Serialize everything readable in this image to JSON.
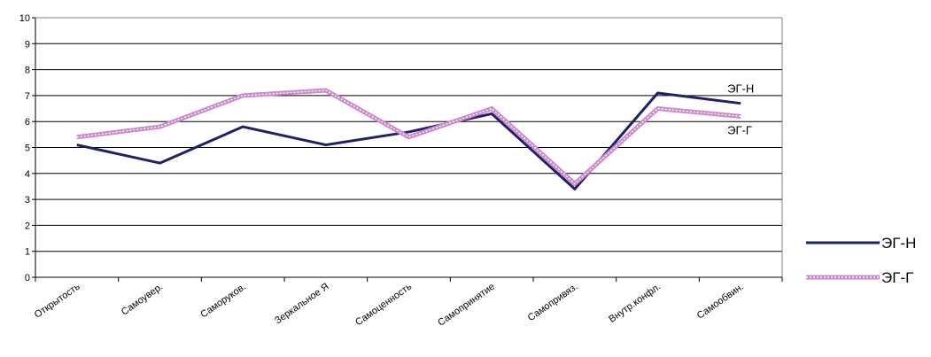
{
  "chart_data": {
    "type": "line",
    "categories": [
      "Открытость",
      "Самоувер.",
      "Саморуков.",
      "Зеркальное Я",
      "Самоценность",
      "Самопринятие",
      "Самопривяз.",
      "Внутр.конфл.",
      "Самообвин."
    ],
    "series": [
      {
        "name": "ЭГ-Н",
        "values": [
          5.1,
          4.4,
          5.8,
          5.1,
          5.6,
          6.3,
          3.4,
          7.1,
          6.7
        ],
        "color": "#1f1f6b",
        "style": "solid"
      },
      {
        "name": "ЭГ-Г",
        "values": [
          5.4,
          5.8,
          7.0,
          7.2,
          5.4,
          6.5,
          3.6,
          6.5,
          6.2
        ],
        "color": "#cc88cc",
        "style": "dotted-band"
      }
    ],
    "ylim": [
      0,
      10
    ],
    "yticks": [
      "0",
      "1",
      "2",
      "3",
      "4",
      "5",
      "6",
      "7",
      "8",
      "9",
      "10"
    ],
    "grid": true,
    "legend_position": "right",
    "annotations": [
      {
        "text": "ЭГ-Н",
        "series": 0
      },
      {
        "text": "ЭГ-Г",
        "series": 1
      }
    ]
  }
}
